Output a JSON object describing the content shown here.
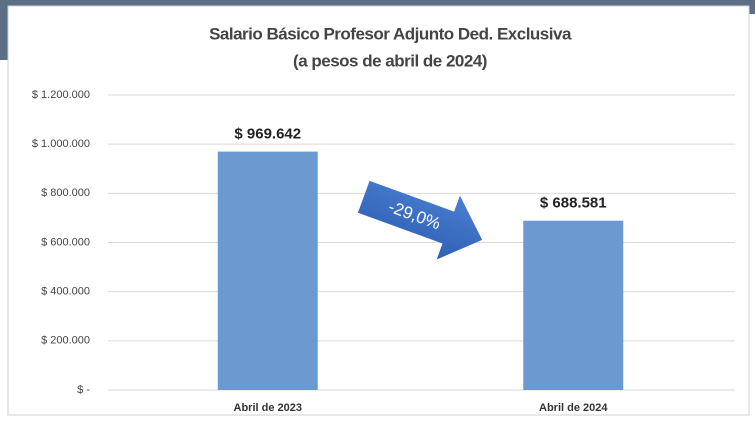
{
  "chart_data": {
    "type": "bar",
    "title": "Salario Básico Profesor Adjunto Ded. Exclusiva",
    "subtitle": "(a pesos de abril de 2024)",
    "annotation": "-29,0%",
    "categories": [
      "Abril de 2023",
      "Abril de 2024"
    ],
    "values": [
      969642,
      688581
    ],
    "value_labels": [
      "$ 969.642",
      "$ 688.581"
    ],
    "color": "#6a9ad0",
    "ylim": [
      0,
      1200000
    ],
    "yticks": [
      {
        "value": 0,
        "label": "$ -"
      },
      {
        "value": 200000,
        "label": "$ 200.000"
      },
      {
        "value": 400000,
        "label": "$ 400.000"
      },
      {
        "value": 600000,
        "label": "$ 600.000"
      },
      {
        "value": 800000,
        "label": "$ 800.000"
      },
      {
        "value": 1000000,
        "label": "$ 1.000.000"
      },
      {
        "value": 1200000,
        "label": "$ 1.200.000"
      }
    ],
    "grid": true
  }
}
